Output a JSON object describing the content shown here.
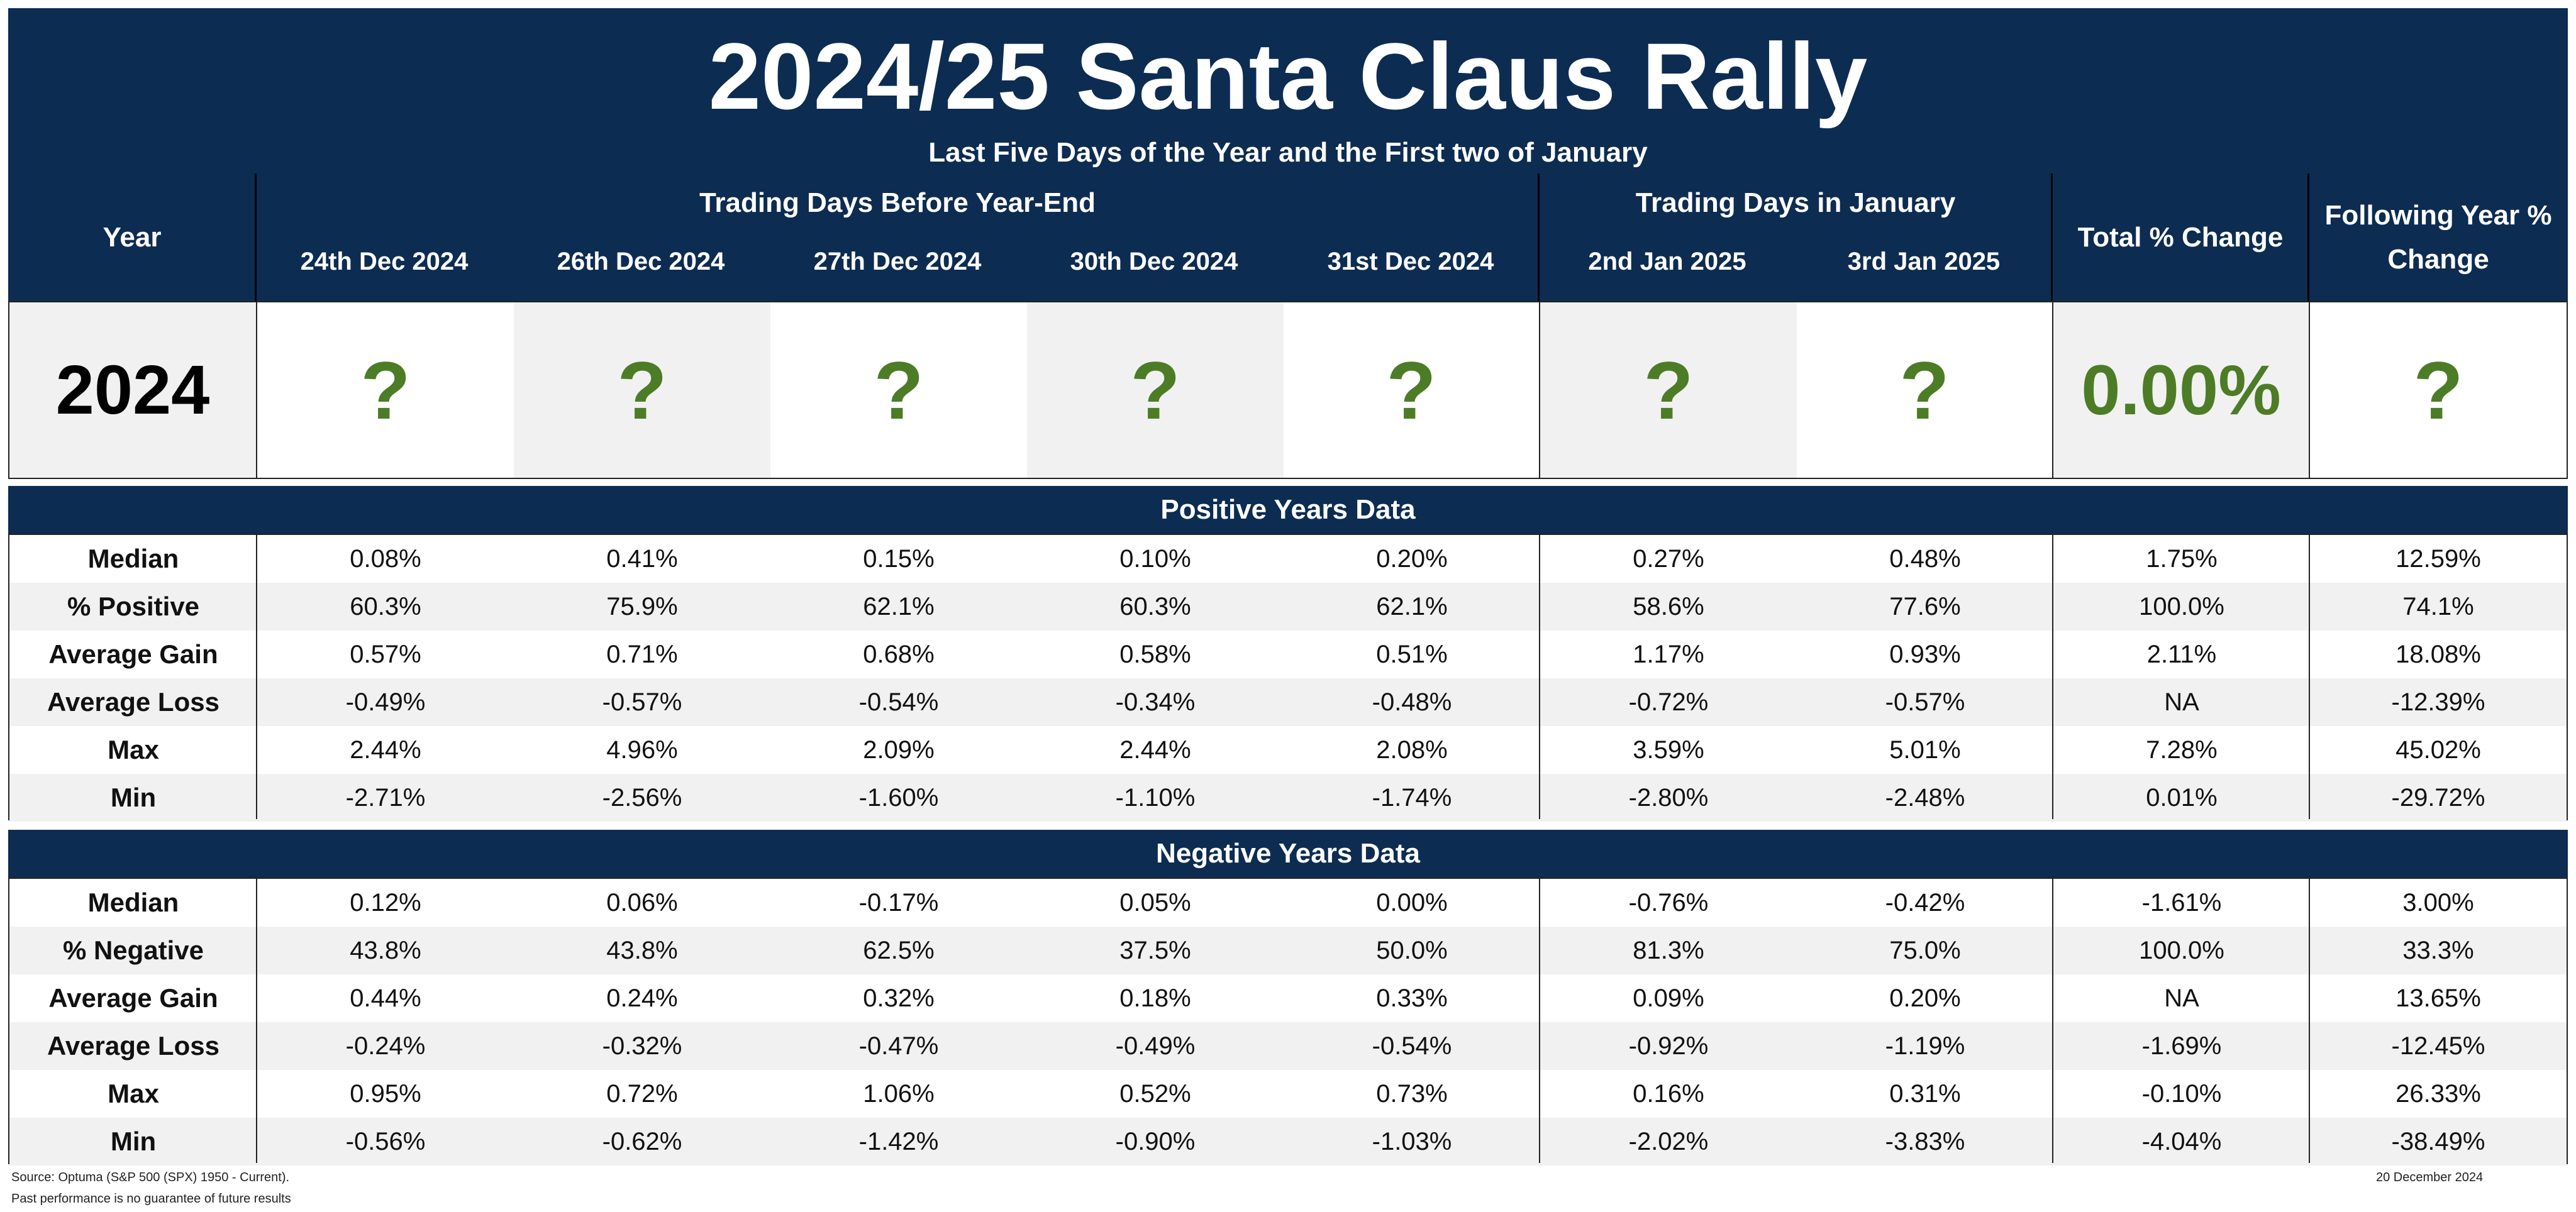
{
  "title": "2024/25 Santa Claus Rally",
  "subtitle": "Last Five Days of the Year and the First two of January",
  "header": {
    "year_label": "Year",
    "group_before": "Trading Days Before Year-End",
    "group_jan": "Trading Days in January",
    "total_label": "Total % Change",
    "following_label": "Following Year % Change",
    "days": [
      "24th Dec 2024",
      "26th Dec 2024",
      "27th Dec 2024",
      "30th Dec 2024",
      "31st Dec 2024",
      "2nd Jan 2025",
      "3rd Jan 2025"
    ]
  },
  "current": {
    "year": "2024",
    "values": [
      "?",
      "?",
      "?",
      "?",
      "?",
      "?",
      "?"
    ],
    "total": "0.00%",
    "following": "?"
  },
  "chart_data": {
    "type": "table",
    "columns": [
      "24th Dec 2024",
      "26th Dec 2024",
      "27th Dec 2024",
      "30th Dec 2024",
      "31st Dec 2024",
      "2nd Jan 2025",
      "3rd Jan 2025",
      "Total % Change",
      "Following Year % Change"
    ],
    "positive": {
      "title": "Positive Years Data",
      "rows": [
        {
          "label": "Median",
          "values": [
            "0.08%",
            "0.41%",
            "0.15%",
            "0.10%",
            "0.20%",
            "0.27%",
            "0.48%",
            "1.75%",
            "12.59%"
          ]
        },
        {
          "label": "% Positive",
          "values": [
            "60.3%",
            "75.9%",
            "62.1%",
            "60.3%",
            "62.1%",
            "58.6%",
            "77.6%",
            "100.0%",
            "74.1%"
          ]
        },
        {
          "label": "Average Gain",
          "values": [
            "0.57%",
            "0.71%",
            "0.68%",
            "0.58%",
            "0.51%",
            "1.17%",
            "0.93%",
            "2.11%",
            "18.08%"
          ]
        },
        {
          "label": "Average Loss",
          "values": [
            "-0.49%",
            "-0.57%",
            "-0.54%",
            "-0.34%",
            "-0.48%",
            "-0.72%",
            "-0.57%",
            "NA",
            "-12.39%"
          ]
        },
        {
          "label": "Max",
          "values": [
            "2.44%",
            "4.96%",
            "2.09%",
            "2.44%",
            "2.08%",
            "3.59%",
            "5.01%",
            "7.28%",
            "45.02%"
          ]
        },
        {
          "label": "Min",
          "values": [
            "-2.71%",
            "-2.56%",
            "-1.60%",
            "-1.10%",
            "-1.74%",
            "-2.80%",
            "-2.48%",
            "0.01%",
            "-29.72%"
          ]
        }
      ]
    },
    "negative": {
      "title": "Negative Years Data",
      "rows": [
        {
          "label": "Median",
          "values": [
            "0.12%",
            "0.06%",
            "-0.17%",
            "0.05%",
            "0.00%",
            "-0.76%",
            "-0.42%",
            "-1.61%",
            "3.00%"
          ]
        },
        {
          "label": "% Negative",
          "values": [
            "43.8%",
            "43.8%",
            "62.5%",
            "37.5%",
            "50.0%",
            "81.3%",
            "75.0%",
            "100.0%",
            "33.3%"
          ]
        },
        {
          "label": "Average Gain",
          "values": [
            "0.44%",
            "0.24%",
            "0.32%",
            "0.18%",
            "0.33%",
            "0.09%",
            "0.20%",
            "NA",
            "13.65%"
          ]
        },
        {
          "label": "Average Loss",
          "values": [
            "-0.24%",
            "-0.32%",
            "-0.47%",
            "-0.49%",
            "-0.54%",
            "-0.92%",
            "-1.19%",
            "-1.69%",
            "-12.45%"
          ]
        },
        {
          "label": "Max",
          "values": [
            "0.95%",
            "0.72%",
            "1.06%",
            "0.52%",
            "0.73%",
            "0.16%",
            "0.31%",
            "-0.10%",
            "26.33%"
          ]
        },
        {
          "label": "Min",
          "values": [
            "-0.56%",
            "-0.62%",
            "-1.42%",
            "-0.90%",
            "-1.03%",
            "-2.02%",
            "-3.83%",
            "-4.04%",
            "-38.49%"
          ]
        }
      ]
    }
  },
  "footer": {
    "source": "Source: Optuma (S&P 500 (SPX) 1950 - Current).",
    "disclaimer": "Past performance is no guarantee of future results",
    "date": "20 December 2024"
  },
  "colors": {
    "navy": "#0d2c52",
    "green": "#4d7c26",
    "band": "#f1f1f1"
  }
}
